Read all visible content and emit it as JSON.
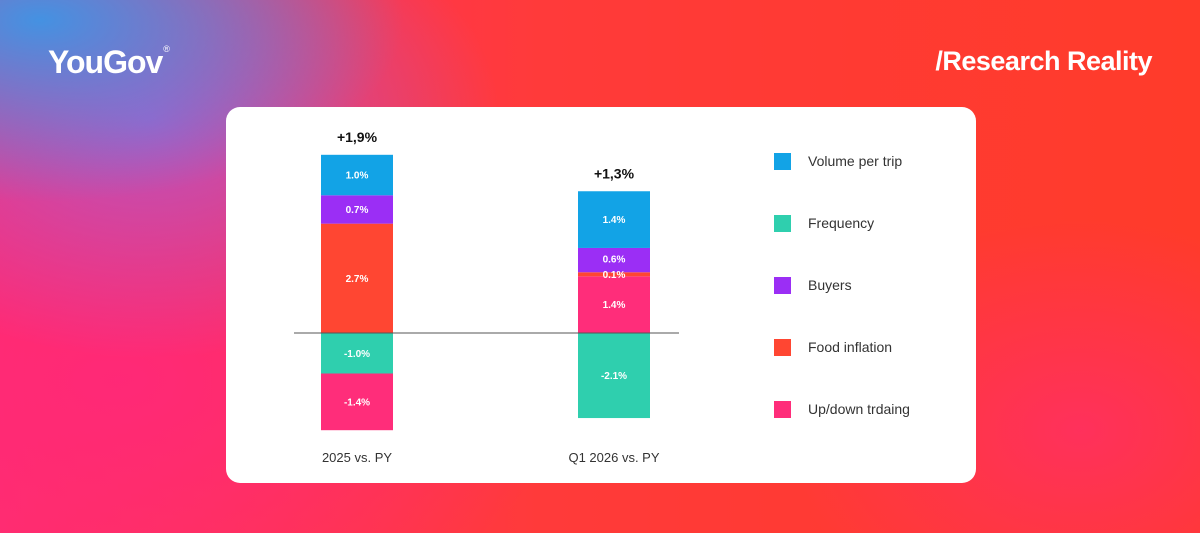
{
  "header": {
    "brand": "YouGov",
    "brand_mark": "®",
    "tagline": "/Research Reality"
  },
  "chart_data": {
    "type": "bar",
    "stacked": true,
    "categories": [
      "2025 vs. PY",
      "Q1 2026 vs. PY"
    ],
    "totals": [
      "+1,9%",
      "+1,3%"
    ],
    "series": [
      {
        "name": "Volume per trip",
        "color": "#12a3e6",
        "values": [
          1.0,
          1.4
        ],
        "labels": [
          "1.0%",
          "1.4%"
        ]
      },
      {
        "name": "Frequency",
        "color": "#2fcfae",
        "values": [
          -1.0,
          -2.1
        ],
        "labels": [
          "-1.0%",
          "-2.1%"
        ]
      },
      {
        "name": "Buyers",
        "color": "#9b2ef5",
        "values": [
          0.7,
          0.6
        ],
        "labels": [
          "0.7%",
          "0.6%"
        ]
      },
      {
        "name": "Food inflation",
        "color": "#ff4632",
        "values": [
          2.7,
          0.1
        ],
        "labels": [
          "2.7%",
          "0.1%"
        ]
      },
      {
        "name": "Up/down trdaing",
        "color": "#ff2d7a",
        "values": [
          -1.4,
          1.4
        ],
        "labels": [
          "-1.4%",
          "1.4%"
        ]
      }
    ],
    "stack_order_positive": [
      [
        "Food inflation",
        "Buyers",
        "Volume per trip"
      ],
      [
        "Up/down trdaing",
        "Food inflation",
        "Buyers",
        "Volume per trip"
      ]
    ],
    "stack_order_negative": [
      [
        "Frequency",
        "Up/down trdaing"
      ],
      [
        "Frequency"
      ]
    ],
    "legend_position": "right",
    "grid": false
  }
}
